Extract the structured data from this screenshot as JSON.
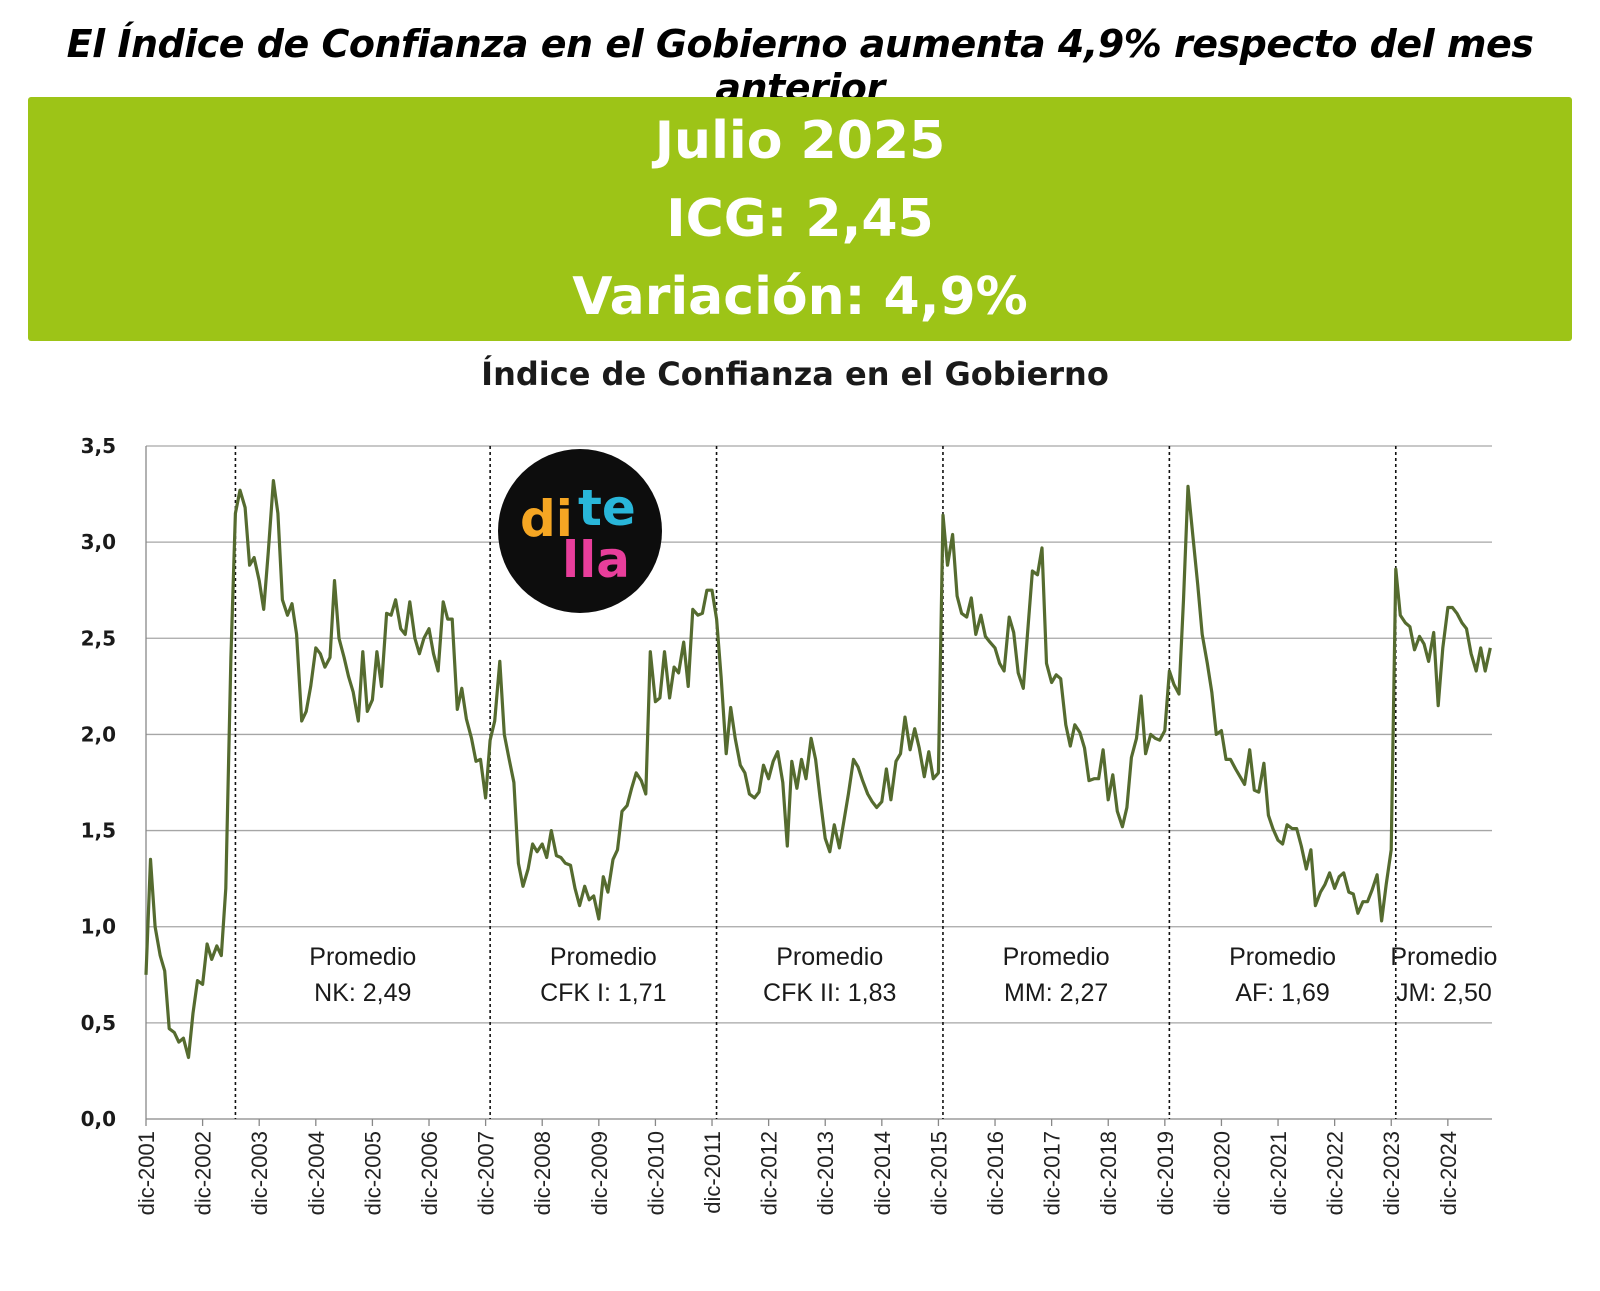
{
  "headline": "El Índice de Confianza en el Gobierno aumenta 4,9% respecto del mes anterior",
  "banner": {
    "line1": "Julio 2025",
    "line2": "ICG: 2,45",
    "line3": "Variación: 4,9%",
    "color": "#9dc417"
  },
  "logo": {
    "text_top": "di",
    "text_top2": "te",
    "text_bottom": "lla",
    "colors": [
      "#f5a623",
      "#29b6d9",
      "#e83e9b"
    ]
  },
  "chart_data": {
    "type": "line",
    "title": "Índice de Confianza en el Gobierno",
    "ylim": [
      0,
      3.5
    ],
    "yticks": [
      "0,0",
      "0,5",
      "1,0",
      "1,5",
      "2,0",
      "2,5",
      "3,0",
      "3,5"
    ],
    "xtick_labels": [
      "dic-2001",
      "dic-2002",
      "dic-2003",
      "dic-2004",
      "dic-2005",
      "dic-2006",
      "dic-2007",
      "dic-2008",
      "dic-2009",
      "dic-2010",
      "dic-2011",
      "dic-2012",
      "dic-2013",
      "dic-2014",
      "dic-2015",
      "dic-2016",
      "dic-2017",
      "dic-2018",
      "dic-2019",
      "dic-2020",
      "dic-2021",
      "dic-2022",
      "dic-2023",
      "dic-2024"
    ],
    "grid": true,
    "line_color": "#556b2f",
    "periods": [
      {
        "start": 2003.5,
        "line1": "Promedio",
        "line2": "NK: 2,49"
      },
      {
        "start": 2008.0,
        "line1": "Promedio",
        "line2": "CFK I: 1,71"
      },
      {
        "start": 2012.0,
        "line1": "Promedio",
        "line2": "CFK II: 1,83"
      },
      {
        "start": 2016.0,
        "line1": "Promedio",
        "line2": "MM: 2,27"
      },
      {
        "start": 2020.0,
        "line1": "Promedio",
        "line2": "AF: 1,69"
      },
      {
        "start": 2024.0,
        "line1": "Promedio",
        "line2": "JM: 2,50"
      }
    ],
    "series": [
      {
        "points": [
          [
            2001.92,
            0.75
          ],
          [
            2002.0,
            1.35
          ],
          [
            2002.08,
            1.0
          ],
          [
            2002.17,
            0.85
          ],
          [
            2002.25,
            0.77
          ],
          [
            2002.33,
            0.47
          ],
          [
            2002.42,
            0.45
          ],
          [
            2002.5,
            0.4
          ],
          [
            2002.58,
            0.42
          ],
          [
            2002.67,
            0.32
          ],
          [
            2002.75,
            0.55
          ],
          [
            2002.83,
            0.72
          ],
          [
            2002.92,
            0.7
          ],
          [
            2003.0,
            0.91
          ],
          [
            2003.08,
            0.83
          ],
          [
            2003.17,
            0.9
          ],
          [
            2003.25,
            0.85
          ],
          [
            2003.33,
            1.2
          ],
          [
            2003.42,
            2.4
          ],
          [
            2003.5,
            3.15
          ],
          [
            2003.58,
            3.27
          ],
          [
            2003.67,
            3.18
          ],
          [
            2003.75,
            2.88
          ],
          [
            2003.83,
            2.92
          ],
          [
            2003.92,
            2.8
          ],
          [
            2004.0,
            2.65
          ],
          [
            2004.08,
            2.95
          ],
          [
            2004.17,
            3.32
          ],
          [
            2004.25,
            3.15
          ],
          [
            2004.33,
            2.7
          ],
          [
            2004.42,
            2.62
          ],
          [
            2004.5,
            2.68
          ],
          [
            2004.58,
            2.52
          ],
          [
            2004.67,
            2.07
          ],
          [
            2004.75,
            2.12
          ],
          [
            2004.83,
            2.25
          ],
          [
            2004.92,
            2.45
          ],
          [
            2005.0,
            2.42
          ],
          [
            2005.08,
            2.35
          ],
          [
            2005.17,
            2.4
          ],
          [
            2005.25,
            2.8
          ],
          [
            2005.33,
            2.5
          ],
          [
            2005.42,
            2.4
          ],
          [
            2005.5,
            2.3
          ],
          [
            2005.58,
            2.22
          ],
          [
            2005.67,
            2.07
          ],
          [
            2005.75,
            2.43
          ],
          [
            2005.83,
            2.12
          ],
          [
            2005.92,
            2.18
          ],
          [
            2006.0,
            2.43
          ],
          [
            2006.08,
            2.25
          ],
          [
            2006.17,
            2.63
          ],
          [
            2006.25,
            2.62
          ],
          [
            2006.33,
            2.7
          ],
          [
            2006.42,
            2.55
          ],
          [
            2006.5,
            2.52
          ],
          [
            2006.58,
            2.69
          ],
          [
            2006.67,
            2.5
          ],
          [
            2006.75,
            2.42
          ],
          [
            2006.83,
            2.5
          ],
          [
            2006.92,
            2.55
          ],
          [
            2007.0,
            2.42
          ],
          [
            2007.08,
            2.33
          ],
          [
            2007.17,
            2.69
          ],
          [
            2007.25,
            2.6
          ],
          [
            2007.33,
            2.6
          ],
          [
            2007.42,
            2.13
          ],
          [
            2007.5,
            2.24
          ],
          [
            2007.58,
            2.08
          ],
          [
            2007.67,
            1.98
          ],
          [
            2007.75,
            1.86
          ],
          [
            2007.83,
            1.87
          ],
          [
            2007.92,
            1.67
          ],
          [
            2008.0,
            1.97
          ],
          [
            2008.08,
            2.07
          ],
          [
            2008.17,
            2.38
          ],
          [
            2008.25,
            2.0
          ],
          [
            2008.33,
            1.88
          ],
          [
            2008.42,
            1.75
          ],
          [
            2008.5,
            1.33
          ],
          [
            2008.58,
            1.21
          ],
          [
            2008.67,
            1.3
          ],
          [
            2008.75,
            1.43
          ],
          [
            2008.83,
            1.39
          ],
          [
            2008.92,
            1.43
          ],
          [
            2009.0,
            1.36
          ],
          [
            2009.08,
            1.5
          ],
          [
            2009.17,
            1.37
          ],
          [
            2009.25,
            1.36
          ],
          [
            2009.33,
            1.33
          ],
          [
            2009.42,
            1.32
          ],
          [
            2009.5,
            1.2
          ],
          [
            2009.58,
            1.11
          ],
          [
            2009.67,
            1.21
          ],
          [
            2009.75,
            1.14
          ],
          [
            2009.83,
            1.16
          ],
          [
            2009.92,
            1.04
          ],
          [
            2010.0,
            1.26
          ],
          [
            2010.08,
            1.18
          ],
          [
            2010.17,
            1.35
          ],
          [
            2010.25,
            1.4
          ],
          [
            2010.33,
            1.6
          ],
          [
            2010.42,
            1.63
          ],
          [
            2010.5,
            1.72
          ],
          [
            2010.58,
            1.8
          ],
          [
            2010.67,
            1.76
          ],
          [
            2010.75,
            1.69
          ],
          [
            2010.83,
            2.43
          ],
          [
            2010.92,
            2.17
          ],
          [
            2011.0,
            2.19
          ],
          [
            2011.08,
            2.43
          ],
          [
            2011.17,
            2.19
          ],
          [
            2011.25,
            2.35
          ],
          [
            2011.33,
            2.32
          ],
          [
            2011.42,
            2.48
          ],
          [
            2011.5,
            2.25
          ],
          [
            2011.58,
            2.65
          ],
          [
            2011.67,
            2.62
          ],
          [
            2011.75,
            2.63
          ],
          [
            2011.83,
            2.75
          ],
          [
            2011.92,
            2.75
          ],
          [
            2012.0,
            2.6
          ],
          [
            2012.08,
            2.3
          ],
          [
            2012.17,
            1.9
          ],
          [
            2012.25,
            2.14
          ],
          [
            2012.33,
            1.98
          ],
          [
            2012.42,
            1.84
          ],
          [
            2012.5,
            1.8
          ],
          [
            2012.58,
            1.69
          ],
          [
            2012.67,
            1.67
          ],
          [
            2012.75,
            1.7
          ],
          [
            2012.83,
            1.84
          ],
          [
            2012.92,
            1.77
          ],
          [
            2013.0,
            1.86
          ],
          [
            2013.08,
            1.91
          ],
          [
            2013.17,
            1.75
          ],
          [
            2013.25,
            1.42
          ],
          [
            2013.33,
            1.86
          ],
          [
            2013.42,
            1.72
          ],
          [
            2013.5,
            1.87
          ],
          [
            2013.58,
            1.77
          ],
          [
            2013.67,
            1.98
          ],
          [
            2013.75,
            1.87
          ],
          [
            2013.83,
            1.67
          ],
          [
            2013.92,
            1.46
          ],
          [
            2014.0,
            1.39
          ],
          [
            2014.08,
            1.53
          ],
          [
            2014.17,
            1.41
          ],
          [
            2014.25,
            1.55
          ],
          [
            2014.33,
            1.69
          ],
          [
            2014.42,
            1.87
          ],
          [
            2014.5,
            1.83
          ],
          [
            2014.58,
            1.76
          ],
          [
            2014.67,
            1.69
          ],
          [
            2014.75,
            1.65
          ],
          [
            2014.83,
            1.62
          ],
          [
            2014.92,
            1.65
          ],
          [
            2015.0,
            1.82
          ],
          [
            2015.08,
            1.66
          ],
          [
            2015.17,
            1.86
          ],
          [
            2015.25,
            1.9
          ],
          [
            2015.33,
            2.09
          ],
          [
            2015.42,
            1.92
          ],
          [
            2015.5,
            2.03
          ],
          [
            2015.58,
            1.93
          ],
          [
            2015.67,
            1.78
          ],
          [
            2015.75,
            1.91
          ],
          [
            2015.83,
            1.77
          ],
          [
            2015.92,
            1.8
          ],
          [
            2016.0,
            3.14
          ],
          [
            2016.08,
            2.88
          ],
          [
            2016.17,
            3.04
          ],
          [
            2016.25,
            2.72
          ],
          [
            2016.33,
            2.63
          ],
          [
            2016.42,
            2.61
          ],
          [
            2016.5,
            2.71
          ],
          [
            2016.58,
            2.52
          ],
          [
            2016.67,
            2.62
          ],
          [
            2016.75,
            2.51
          ],
          [
            2016.83,
            2.48
          ],
          [
            2016.92,
            2.45
          ],
          [
            2017.0,
            2.37
          ],
          [
            2017.08,
            2.33
          ],
          [
            2017.17,
            2.61
          ],
          [
            2017.25,
            2.53
          ],
          [
            2017.33,
            2.32
          ],
          [
            2017.42,
            2.24
          ],
          [
            2017.5,
            2.55
          ],
          [
            2017.58,
            2.85
          ],
          [
            2017.67,
            2.83
          ],
          [
            2017.75,
            2.97
          ],
          [
            2017.83,
            2.37
          ],
          [
            2017.92,
            2.27
          ],
          [
            2018.0,
            2.31
          ],
          [
            2018.08,
            2.29
          ],
          [
            2018.17,
            2.05
          ],
          [
            2018.25,
            1.94
          ],
          [
            2018.33,
            2.05
          ],
          [
            2018.42,
            2.01
          ],
          [
            2018.5,
            1.93
          ],
          [
            2018.58,
            1.76
          ],
          [
            2018.67,
            1.77
          ],
          [
            2018.75,
            1.77
          ],
          [
            2018.83,
            1.92
          ],
          [
            2018.92,
            1.66
          ],
          [
            2019.0,
            1.79
          ],
          [
            2019.08,
            1.6
          ],
          [
            2019.17,
            1.52
          ],
          [
            2019.25,
            1.62
          ],
          [
            2019.33,
            1.88
          ],
          [
            2019.42,
            1.98
          ],
          [
            2019.5,
            2.2
          ],
          [
            2019.58,
            1.9
          ],
          [
            2019.67,
            2.0
          ],
          [
            2019.75,
            1.98
          ],
          [
            2019.83,
            1.97
          ],
          [
            2019.92,
            2.02
          ],
          [
            2020.0,
            2.33
          ],
          [
            2020.08,
            2.26
          ],
          [
            2020.17,
            2.21
          ],
          [
            2020.25,
            2.7
          ],
          [
            2020.33,
            3.29
          ],
          [
            2020.42,
            3.02
          ],
          [
            2020.5,
            2.78
          ],
          [
            2020.58,
            2.52
          ],
          [
            2020.67,
            2.37
          ],
          [
            2020.75,
            2.22
          ],
          [
            2020.83,
            2.0
          ],
          [
            2020.92,
            2.02
          ],
          [
            2021.0,
            1.87
          ],
          [
            2021.08,
            1.87
          ],
          [
            2021.17,
            1.82
          ],
          [
            2021.25,
            1.78
          ],
          [
            2021.33,
            1.74
          ],
          [
            2021.42,
            1.92
          ],
          [
            2021.5,
            1.71
          ],
          [
            2021.58,
            1.7
          ],
          [
            2021.67,
            1.85
          ],
          [
            2021.75,
            1.58
          ],
          [
            2021.83,
            1.51
          ],
          [
            2021.92,
            1.45
          ],
          [
            2022.0,
            1.43
          ],
          [
            2022.08,
            1.53
          ],
          [
            2022.17,
            1.51
          ],
          [
            2022.25,
            1.51
          ],
          [
            2022.33,
            1.42
          ],
          [
            2022.42,
            1.3
          ],
          [
            2022.5,
            1.4
          ],
          [
            2022.58,
            1.11
          ],
          [
            2022.67,
            1.18
          ],
          [
            2022.75,
            1.22
          ],
          [
            2022.83,
            1.28
          ],
          [
            2022.92,
            1.2
          ],
          [
            2023.0,
            1.26
          ],
          [
            2023.08,
            1.28
          ],
          [
            2023.17,
            1.18
          ],
          [
            2023.25,
            1.17
          ],
          [
            2023.33,
            1.07
          ],
          [
            2023.42,
            1.13
          ],
          [
            2023.5,
            1.13
          ],
          [
            2023.58,
            1.19
          ],
          [
            2023.67,
            1.27
          ],
          [
            2023.75,
            1.03
          ],
          [
            2023.83,
            1.22
          ],
          [
            2023.92,
            1.4
          ],
          [
            2024.0,
            2.86
          ],
          [
            2024.08,
            2.62
          ],
          [
            2024.17,
            2.58
          ],
          [
            2024.25,
            2.56
          ],
          [
            2024.33,
            2.44
          ],
          [
            2024.42,
            2.51
          ],
          [
            2024.5,
            2.47
          ],
          [
            2024.58,
            2.38
          ],
          [
            2024.67,
            2.53
          ],
          [
            2024.75,
            2.15
          ],
          [
            2024.83,
            2.45
          ],
          [
            2024.92,
            2.66
          ],
          [
            2025.0,
            2.66
          ],
          [
            2025.08,
            2.63
          ],
          [
            2025.17,
            2.58
          ],
          [
            2025.25,
            2.55
          ],
          [
            2025.33,
            2.42
          ],
          [
            2025.42,
            2.33
          ],
          [
            2025.5,
            2.45
          ],
          [
            2025.58,
            2.33
          ],
          [
            2025.67,
            2.45
          ]
        ]
      }
    ]
  }
}
